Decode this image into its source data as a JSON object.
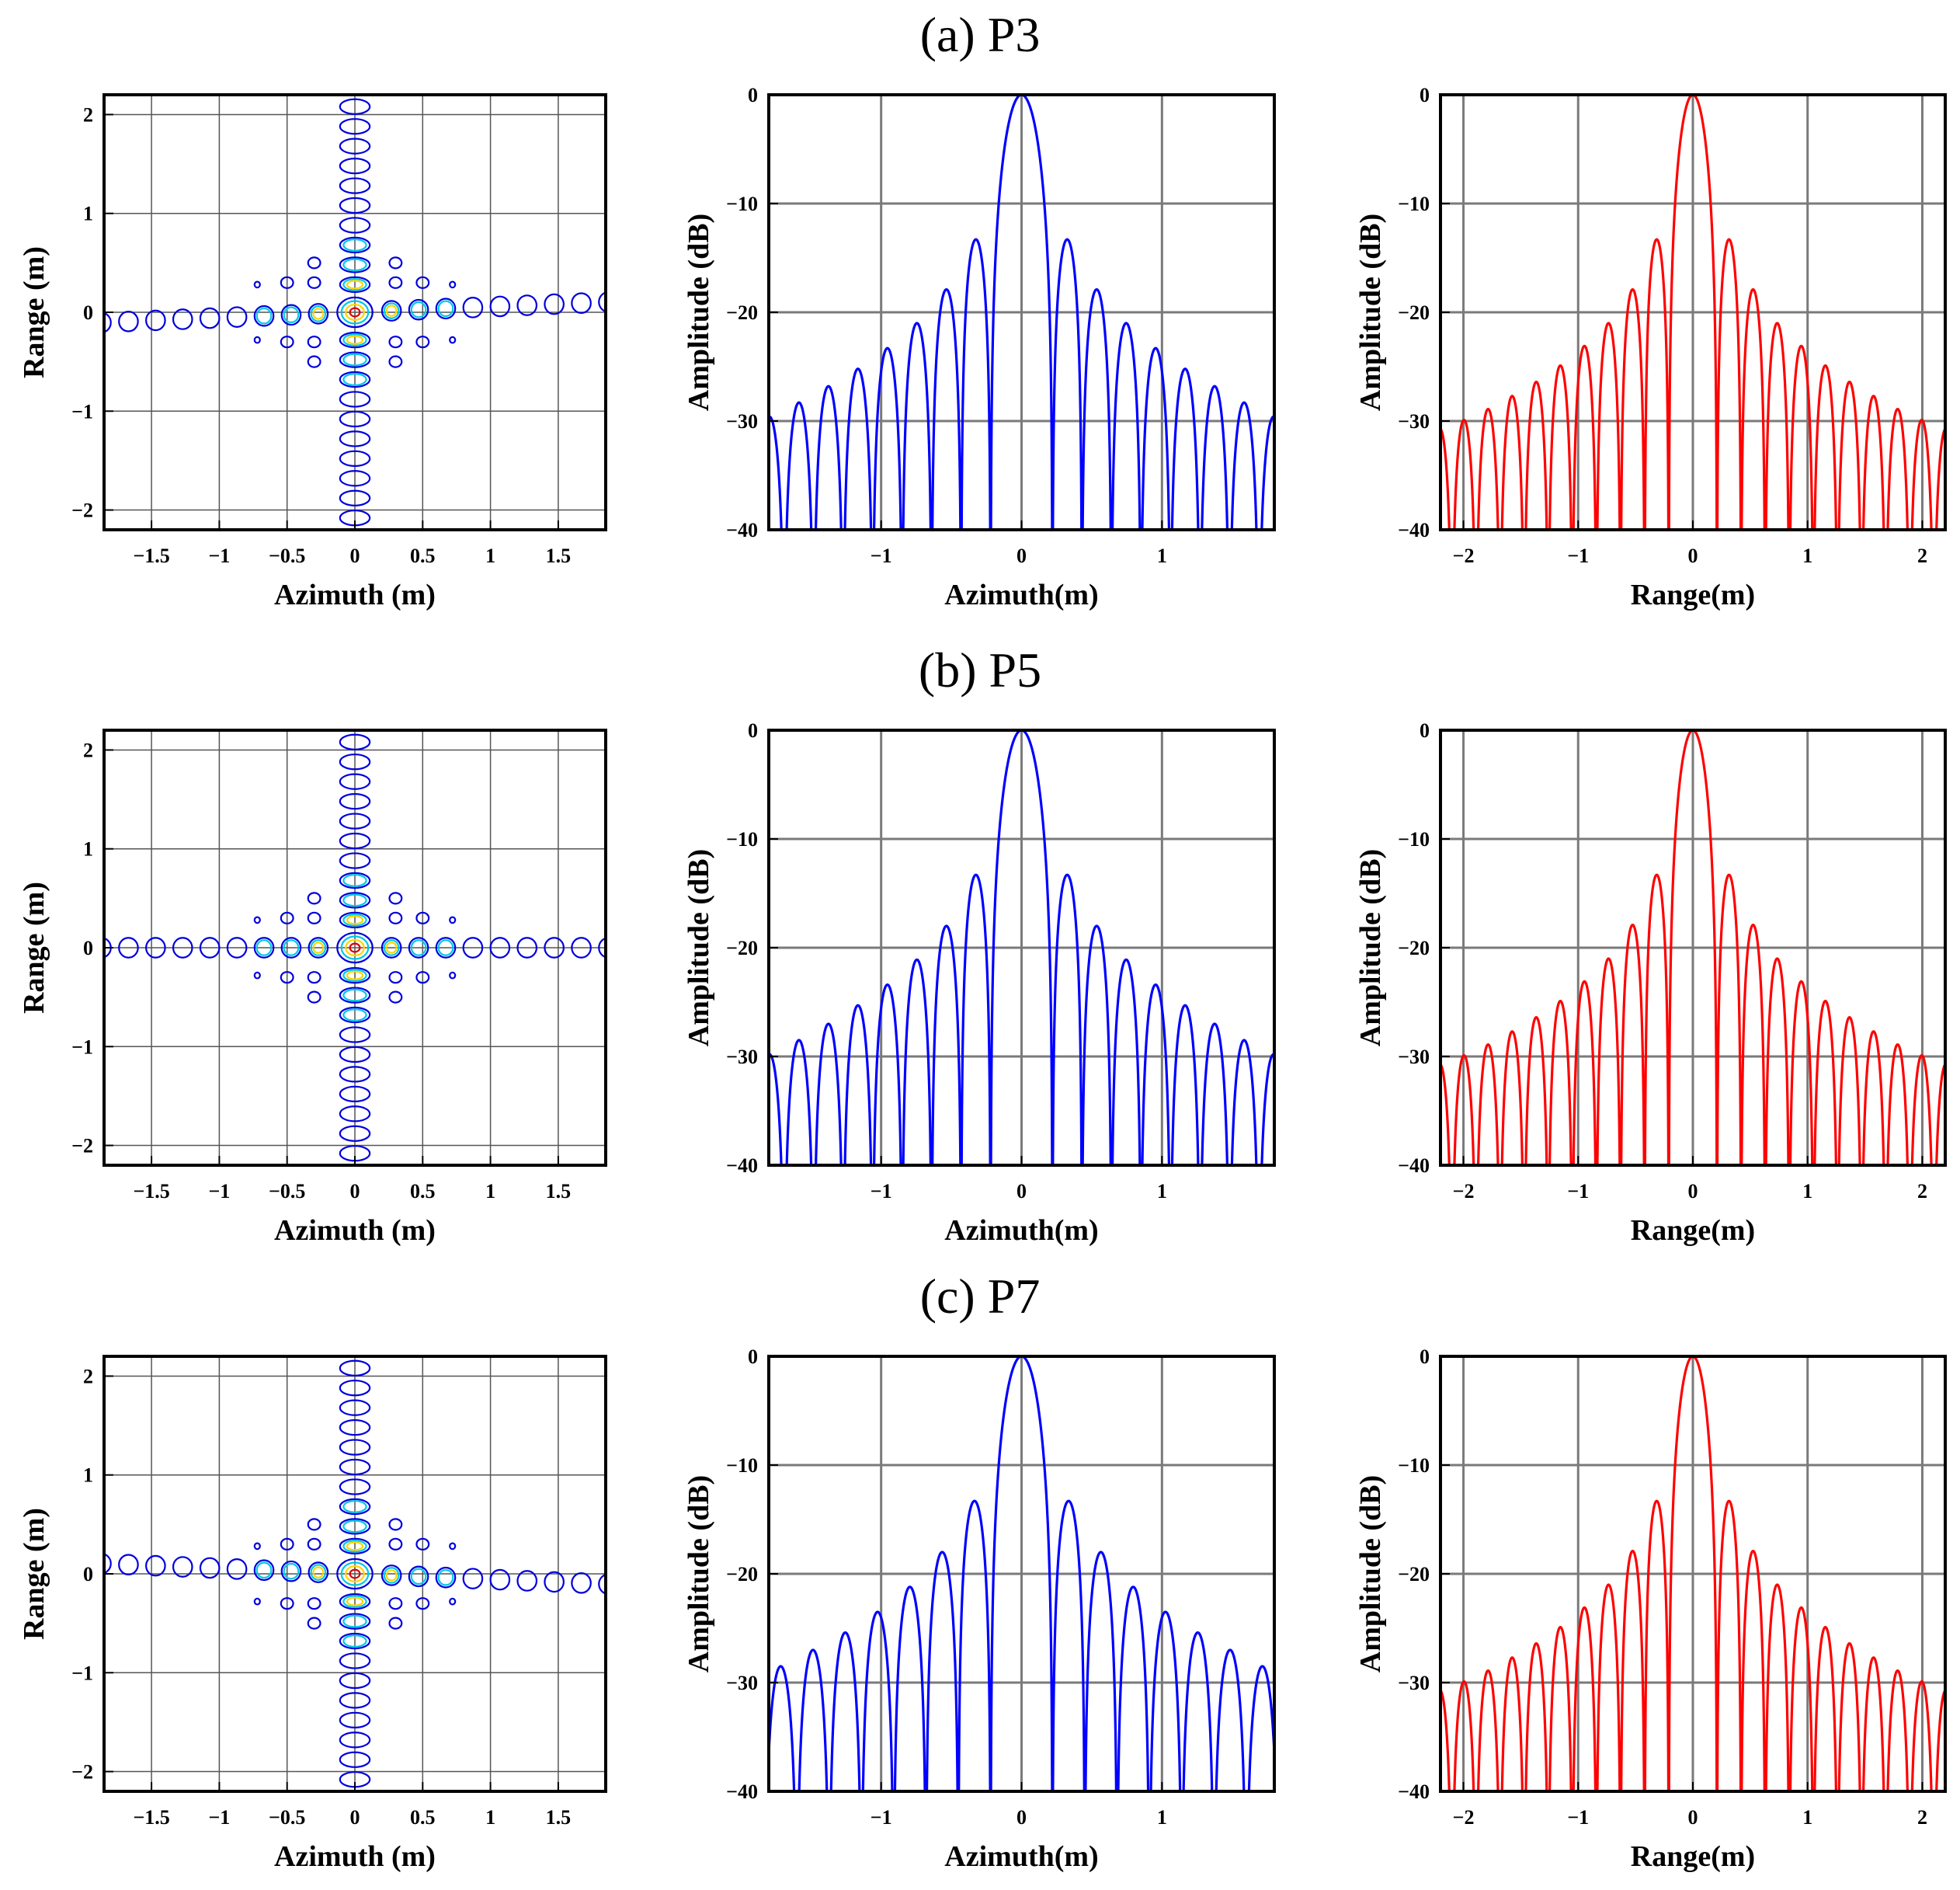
{
  "figure": {
    "rows": [
      {
        "title": "(a) P3"
      },
      {
        "title": "(b) P5"
      },
      {
        "title": "(c) P7"
      }
    ]
  },
  "colors": {
    "azimuth_profile": "#0000ff",
    "range_profile": "#ff0000",
    "contour_outer": "#0000dd",
    "contour_mid1": "#00c8e6",
    "contour_mid2": "#ffd400",
    "contour_peak": "#dd0000"
  },
  "chart_data": [
    {
      "row": 0,
      "type": "contour",
      "xlabel": "Azimuth (m)",
      "ylabel": "Range (m)",
      "xlim": [
        -1.85,
        1.85
      ],
      "ylim": [
        -2.2,
        2.2
      ],
      "xticks": [
        -1.5,
        -1,
        -0.5,
        0,
        0.5,
        1,
        1.5
      ],
      "xtick_labels": [
        "−1.5",
        "−1",
        "−0.5",
        "0",
        "0.5",
        "1",
        "1.5"
      ],
      "yticks": [
        -2,
        -1,
        0,
        1,
        2
      ],
      "ytick_labels": [
        "−2",
        "−1",
        "0",
        "1",
        "2"
      ],
      "grid": true,
      "peak": [
        0,
        0
      ],
      "lobe_spacing_x": 0.2,
      "lobe_spacing_y": 0.2,
      "x_arm_tilt": 0.1
    },
    {
      "row": 0,
      "type": "line",
      "series_color": "#0000ff",
      "xlabel": "Azimuth(m)",
      "ylabel": "Amplitude (dB)",
      "xlim": [
        -1.8,
        1.8
      ],
      "ylim": [
        -40,
        0
      ],
      "xticks": [
        -1,
        0,
        1
      ],
      "xtick_labels": [
        "−1",
        "0",
        "1"
      ],
      "yticks": [
        -40,
        -30,
        -20,
        -10,
        0
      ],
      "ytick_labels": [
        "−40",
        "−30",
        "−20",
        "−10",
        "0"
      ],
      "grid": true,
      "mainlobe_halfwidth": 0.22,
      "sidelobe_spacing": 0.21,
      "sidelobe_peaks_db": [
        -13.3,
        -17.9,
        -21.0,
        -23.3,
        -25.2,
        -26.8,
        -28.3,
        -29.6
      ]
    },
    {
      "row": 0,
      "type": "line",
      "series_color": "#ff0000",
      "xlabel": "Range(m)",
      "ylabel": "Amplitude (dB)",
      "xlim": [
        -2.2,
        2.2
      ],
      "ylim": [
        -40,
        0
      ],
      "xticks": [
        -2,
        -1,
        0,
        1,
        2
      ],
      "xtick_labels": [
        "−2",
        "−1",
        "0",
        "1",
        "2"
      ],
      "yticks": [
        -40,
        -30,
        -20,
        -10,
        0
      ],
      "ytick_labels": [
        "−40",
        "−30",
        "−20",
        "−10",
        "0"
      ],
      "grid": true,
      "mainlobe_halfwidth": 0.21,
      "sidelobe_spacing": 0.21,
      "sidelobe_peaks_db": [
        -13.3,
        -17.9,
        -21.0,
        -23.1,
        -24.9,
        -26.4,
        -27.7,
        -28.9,
        -29.9,
        -30.7
      ]
    },
    {
      "row": 1,
      "type": "contour",
      "xlabel": "Azimuth (m)",
      "ylabel": "Range (m)",
      "xlim": [
        -1.85,
        1.85
      ],
      "ylim": [
        -2.2,
        2.2
      ],
      "xticks": [
        -1.5,
        -1,
        -0.5,
        0,
        0.5,
        1,
        1.5
      ],
      "xtick_labels": [
        "−1.5",
        "−1",
        "−0.5",
        "0",
        "0.5",
        "1",
        "1.5"
      ],
      "yticks": [
        -2,
        -1,
        0,
        1,
        2
      ],
      "ytick_labels": [
        "−2",
        "−1",
        "0",
        "1",
        "2"
      ],
      "grid": true,
      "peak": [
        0,
        0
      ],
      "lobe_spacing_x": 0.2,
      "lobe_spacing_y": 0.2,
      "x_arm_tilt": 0.0
    },
    {
      "row": 1,
      "type": "line",
      "series_color": "#0000ff",
      "xlabel": "Azimuth(m)",
      "ylabel": "Amplitude (dB)",
      "xlim": [
        -1.8,
        1.8
      ],
      "ylim": [
        -40,
        0
      ],
      "xticks": [
        -1,
        0,
        1
      ],
      "xtick_labels": [
        "−1",
        "0",
        "1"
      ],
      "yticks": [
        -40,
        -30,
        -20,
        -10,
        0
      ],
      "ytick_labels": [
        "−40",
        "−30",
        "−20",
        "−10",
        "0"
      ],
      "grid": true,
      "mainlobe_halfwidth": 0.22,
      "sidelobe_spacing": 0.21,
      "sidelobe_peaks_db": [
        -13.3,
        -18.0,
        -21.1,
        -23.4,
        -25.3,
        -27.0,
        -28.5,
        -29.8
      ]
    },
    {
      "row": 1,
      "type": "line",
      "series_color": "#ff0000",
      "xlabel": "Range(m)",
      "ylabel": "Amplitude (dB)",
      "xlim": [
        -2.2,
        2.2
      ],
      "ylim": [
        -40,
        0
      ],
      "xticks": [
        -2,
        -1,
        0,
        1,
        2
      ],
      "xtick_labels": [
        "−2",
        "−1",
        "0",
        "1",
        "2"
      ],
      "yticks": [
        -40,
        -30,
        -20,
        -10,
        0
      ],
      "ytick_labels": [
        "−40",
        "−30",
        "−20",
        "−10",
        "0"
      ],
      "grid": true,
      "mainlobe_halfwidth": 0.21,
      "sidelobe_spacing": 0.21,
      "sidelobe_peaks_db": [
        -13.3,
        -17.9,
        -21.0,
        -23.1,
        -24.9,
        -26.4,
        -27.7,
        -28.9,
        -29.9,
        -30.7
      ]
    },
    {
      "row": 2,
      "type": "contour",
      "xlabel": "Azimuth (m)",
      "ylabel": "Range (m)",
      "xlim": [
        -1.85,
        1.85
      ],
      "ylim": [
        -2.2,
        2.2
      ],
      "xticks": [
        -1.5,
        -1,
        -0.5,
        0,
        0.5,
        1,
        1.5
      ],
      "xtick_labels": [
        "−1.5",
        "−1",
        "−0.5",
        "0",
        "0.5",
        "1",
        "1.5"
      ],
      "yticks": [
        -2,
        -1,
        0,
        1,
        2
      ],
      "ytick_labels": [
        "−2",
        "−1",
        "0",
        "1",
        "2"
      ],
      "grid": true,
      "peak": [
        0,
        0
      ],
      "lobe_spacing_x": 0.2,
      "lobe_spacing_y": 0.2,
      "x_arm_tilt": -0.1
    },
    {
      "row": 2,
      "type": "line",
      "series_color": "#0000ff",
      "xlabel": "Azimuth(m)",
      "ylabel": "Amplitude (dB)",
      "xlim": [
        -1.8,
        1.8
      ],
      "ylim": [
        -40,
        0
      ],
      "xticks": [
        -1,
        0,
        1
      ],
      "xtick_labels": [
        "−1",
        "0",
        "1"
      ],
      "yticks": [
        -40,
        -30,
        -20,
        -10,
        0
      ],
      "ytick_labels": [
        "−40",
        "−30",
        "−20",
        "−10",
        "0"
      ],
      "grid": true,
      "mainlobe_halfwidth": 0.22,
      "sidelobe_spacing": 0.23,
      "sidelobe_peaks_db": [
        -13.3,
        -18.0,
        -21.2,
        -23.5,
        -25.4,
        -27.0,
        -28.5
      ]
    },
    {
      "row": 2,
      "type": "line",
      "series_color": "#ff0000",
      "xlabel": "Range(m)",
      "ylabel": "Amplitude (dB)",
      "xlim": [
        -2.2,
        2.2
      ],
      "ylim": [
        -40,
        0
      ],
      "xticks": [
        -2,
        -1,
        0,
        1,
        2
      ],
      "xtick_labels": [
        "−2",
        "−1",
        "0",
        "1",
        "2"
      ],
      "yticks": [
        -40,
        -30,
        -20,
        -10,
        0
      ],
      "ytick_labels": [
        "−40",
        "−30",
        "−20",
        "−10",
        "0"
      ],
      "grid": true,
      "mainlobe_halfwidth": 0.21,
      "sidelobe_spacing": 0.21,
      "sidelobe_peaks_db": [
        -13.3,
        -17.9,
        -21.0,
        -23.1,
        -24.9,
        -26.4,
        -27.7,
        -28.9,
        -29.9,
        -30.7
      ]
    }
  ]
}
